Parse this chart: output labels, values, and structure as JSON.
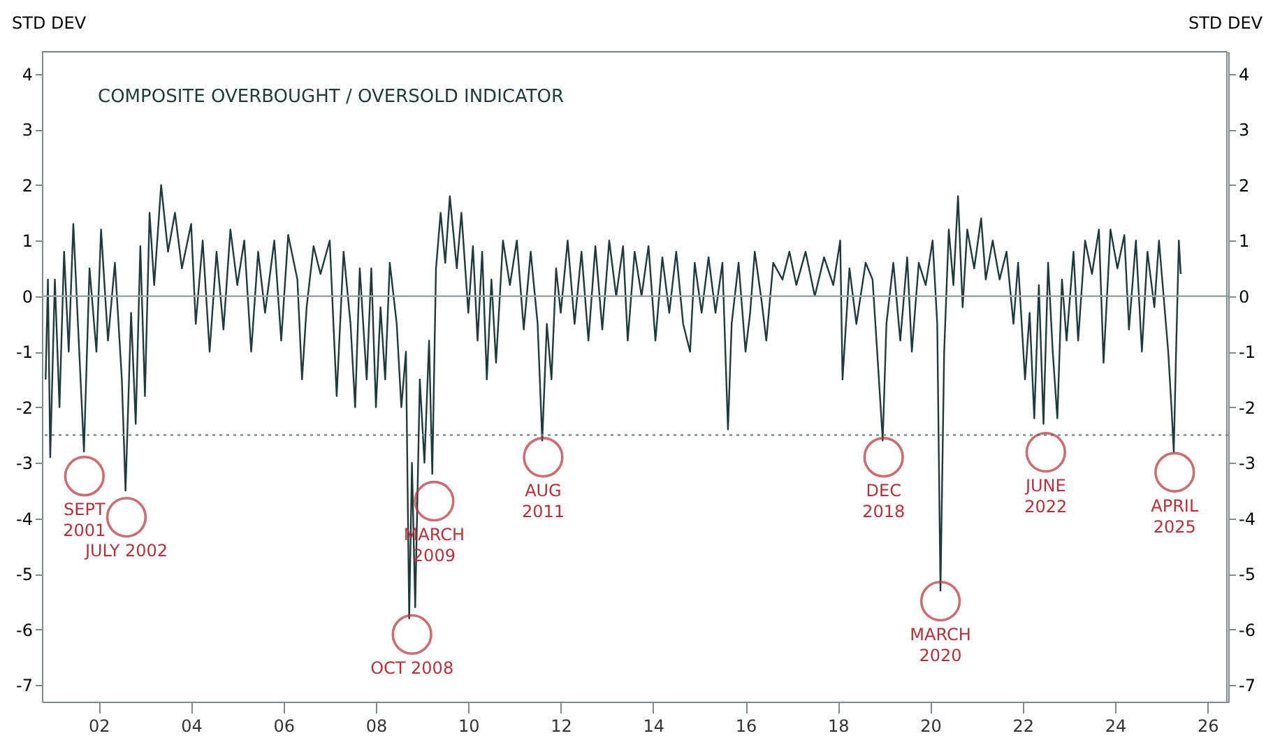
{
  "chart_data": {
    "type": "line",
    "title": "COMPOSITE OVERBOUGHT / OVERSOLD INDICATOR",
    "ylabel": "STD DEV",
    "y2label": "STD DEV",
    "xlim": [
      2000.77,
      2026.45
    ],
    "ylim": [
      -7.3,
      4.4
    ],
    "y2lim": [
      -7.3,
      4.4
    ],
    "xticks": [
      {
        "value": 2002,
        "label": "02"
      },
      {
        "value": 2004,
        "label": "04"
      },
      {
        "value": 2006,
        "label": "06"
      },
      {
        "value": 2008,
        "label": "08"
      },
      {
        "value": 2010,
        "label": "10"
      },
      {
        "value": 2012,
        "label": "12"
      },
      {
        "value": 2014,
        "label": "14"
      },
      {
        "value": 2016,
        "label": "16"
      },
      {
        "value": 2018,
        "label": "18"
      },
      {
        "value": 2020,
        "label": "20"
      },
      {
        "value": 2022,
        "label": "22"
      },
      {
        "value": 2024,
        "label": "24"
      },
      {
        "value": 2026,
        "label": "26"
      }
    ],
    "yticks": [
      -7,
      -6,
      -5,
      -4,
      -3,
      -2,
      -1,
      0,
      1,
      2,
      3,
      4
    ],
    "y2ticks": [
      -7,
      -6,
      -5,
      -4,
      -3,
      -2,
      -1,
      0,
      1,
      2,
      3,
      4
    ],
    "grid": false,
    "marker": "none",
    "line_style": "solid",
    "ref_lines": [
      {
        "axis": "y",
        "value": 0,
        "color": "#9aa5a8",
        "line_style": "solid"
      },
      {
        "axis": "y",
        "value": -2.5,
        "color": "#7f8c8d",
        "line_style": "dotted"
      }
    ],
    "annotations": [
      {
        "text": "SEPT\n2001",
        "x": 2001.69,
        "y": -3.24
      },
      {
        "text": "JULY 2002",
        "x": 2002.6,
        "y": -3.98
      },
      {
        "text": "OCT 2008",
        "x": 2008.78,
        "y": -6.09
      },
      {
        "text": "MARCH\n2009",
        "x": 2009.26,
        "y": -3.69
      },
      {
        "text": "AUG\n2011",
        "x": 2011.62,
        "y": -2.9
      },
      {
        "text": "DEC\n2018",
        "x": 2018.99,
        "y": -2.9
      },
      {
        "text": "MARCH\n2020",
        "x": 2020.22,
        "y": -5.49
      },
      {
        "text": "JUNE\n2022",
        "x": 2022.5,
        "y": -2.81
      },
      {
        "text": "APRIL\n2025",
        "x": 2025.29,
        "y": -3.17
      }
    ],
    "series": [
      {
        "color": "#1f3a3d",
        "x": [
          2000.85,
          2000.9,
          2000.95,
          2001.05,
          2001.15,
          2001.25,
          2001.35,
          2001.45,
          2001.55,
          2001.68,
          2001.8,
          2001.95,
          2002.05,
          2002.2,
          2002.35,
          2002.5,
          2002.58,
          2002.7,
          2002.8,
          2002.9,
          2003.0,
          2003.1,
          2003.2,
          2003.35,
          2003.5,
          2003.65,
          2003.8,
          2004.0,
          2004.1,
          2004.25,
          2004.4,
          2004.55,
          2004.7,
          2004.85,
          2005.0,
          2005.15,
          2005.3,
          2005.45,
          2005.6,
          2005.8,
          2005.95,
          2006.1,
          2006.3,
          2006.4,
          2006.5,
          2006.65,
          2006.8,
          2007.0,
          2007.15,
          2007.3,
          2007.45,
          2007.55,
          2007.65,
          2007.8,
          2007.9,
          2008.0,
          2008.1,
          2008.2,
          2008.3,
          2008.45,
          2008.55,
          2008.65,
          2008.72,
          2008.78,
          2008.85,
          2008.95,
          2009.05,
          2009.15,
          2009.22,
          2009.3,
          2009.4,
          2009.5,
          2009.6,
          2009.75,
          2009.85,
          2010.0,
          2010.1,
          2010.2,
          2010.3,
          2010.4,
          2010.5,
          2010.6,
          2010.75,
          2010.9,
          2011.05,
          2011.2,
          2011.35,
          2011.5,
          2011.6,
          2011.7,
          2011.8,
          2011.9,
          2012.0,
          2012.15,
          2012.3,
          2012.45,
          2012.6,
          2012.75,
          2012.9,
          2013.05,
          2013.2,
          2013.35,
          2013.45,
          2013.6,
          2013.75,
          2013.9,
          2014.05,
          2014.2,
          2014.35,
          2014.5,
          2014.65,
          2014.8,
          2014.9,
          2015.05,
          2015.2,
          2015.35,
          2015.5,
          2015.62,
          2015.7,
          2015.85,
          2016.0,
          2016.1,
          2016.2,
          2016.35,
          2016.45,
          2016.6,
          2016.8,
          2016.95,
          2017.1,
          2017.3,
          2017.5,
          2017.7,
          2017.9,
          2018.05,
          2018.1,
          2018.25,
          2018.4,
          2018.6,
          2018.75,
          2018.85,
          2018.97,
          2019.05,
          2019.2,
          2019.35,
          2019.5,
          2019.6,
          2019.75,
          2019.9,
          2020.05,
          2020.15,
          2020.22,
          2020.3,
          2020.4,
          2020.5,
          2020.6,
          2020.7,
          2020.8,
          2020.95,
          2021.1,
          2021.2,
          2021.35,
          2021.5,
          2021.65,
          2021.8,
          2021.9,
          2022.05,
          2022.15,
          2022.25,
          2022.35,
          2022.45,
          2022.55,
          2022.65,
          2022.75,
          2022.85,
          2022.95,
          2023.1,
          2023.2,
          2023.35,
          2023.5,
          2023.65,
          2023.75,
          2023.9,
          2024.05,
          2024.2,
          2024.3,
          2024.45,
          2024.58,
          2024.7,
          2024.85,
          2024.95,
          2025.05,
          2025.15,
          2025.22,
          2025.27,
          2025.32,
          2025.38,
          2025.42
        ],
        "values": [
          -1.5,
          0.3,
          -2.9,
          0.3,
          -2.0,
          0.8,
          -1.0,
          1.3,
          -0.5,
          -2.8,
          0.5,
          -1.0,
          1.2,
          -0.8,
          0.6,
          -1.5,
          -3.5,
          -0.3,
          -2.3,
          0.9,
          -1.8,
          1.5,
          0.2,
          2.0,
          0.8,
          1.5,
          0.5,
          1.3,
          -0.5,
          1.0,
          -1.0,
          0.8,
          -0.6,
          1.2,
          0.2,
          1.0,
          -1.0,
          0.8,
          -0.3,
          1.0,
          -0.8,
          1.1,
          0.3,
          -1.5,
          -0.2,
          0.9,
          0.4,
          1.0,
          -1.8,
          0.8,
          -0.5,
          -2.0,
          0.5,
          -1.5,
          0.5,
          -2.0,
          -0.2,
          -1.5,
          0.6,
          -0.5,
          -2.0,
          -1.0,
          -5.8,
          -3.0,
          -5.6,
          -1.5,
          -3.0,
          -0.8,
          -3.2,
          0.5,
          1.5,
          0.6,
          1.8,
          0.5,
          1.5,
          -0.3,
          0.9,
          -0.8,
          0.8,
          -1.5,
          0.3,
          -1.2,
          1.0,
          0.2,
          1.0,
          -0.6,
          0.8,
          -0.5,
          -2.6,
          -0.5,
          -1.5,
          0.5,
          -0.3,
          1.0,
          -0.5,
          0.8,
          -0.8,
          0.9,
          -0.6,
          1.0,
          0.0,
          0.9,
          -0.8,
          0.8,
          0.0,
          0.9,
          -0.8,
          0.7,
          -0.3,
          0.8,
          -0.5,
          -1.0,
          0.6,
          -0.3,
          0.7,
          -0.3,
          0.6,
          -2.4,
          -0.5,
          0.6,
          -1.0,
          -0.3,
          0.8,
          -0.1,
          -0.8,
          0.6,
          0.3,
          0.8,
          0.2,
          0.8,
          0.0,
          0.7,
          0.2,
          1.0,
          -1.5,
          0.5,
          -0.5,
          0.6,
          0.3,
          -1.0,
          -2.6,
          -0.5,
          0.6,
          -0.8,
          0.7,
          -1.0,
          0.6,
          0.2,
          1.0,
          -0.5,
          -5.3,
          -1.0,
          1.2,
          0.2,
          1.8,
          -0.2,
          1.2,
          0.5,
          1.4,
          0.3,
          1.0,
          0.3,
          0.8,
          -0.5,
          0.6,
          -1.5,
          -0.3,
          -2.2,
          0.2,
          -2.3,
          0.6,
          -1.0,
          -2.2,
          0.3,
          -0.8,
          0.8,
          -0.8,
          1.0,
          0.4,
          1.2,
          -1.2,
          1.2,
          0.5,
          1.1,
          -0.6,
          1.0,
          -1.0,
          0.8,
          -0.2,
          1.0,
          0.0,
          -1.0,
          -2.0,
          -2.8,
          -1.0,
          1.0,
          0.4
        ]
      }
    ]
  }
}
